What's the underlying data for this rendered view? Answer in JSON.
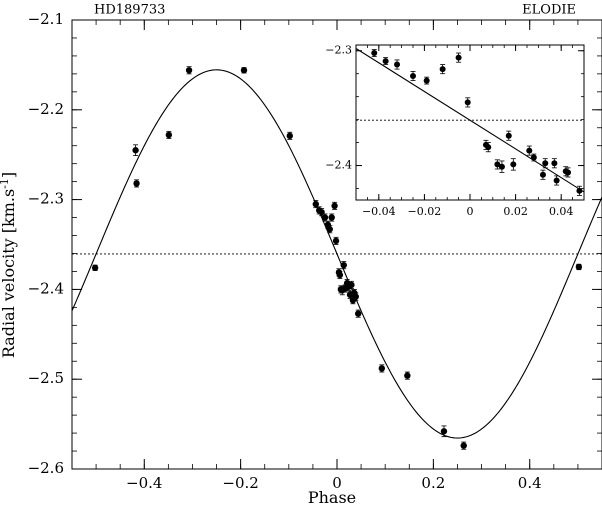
{
  "chart_data": [
    {
      "type": "scatter",
      "title_left": "HD189733",
      "title_right": "ELODIE",
      "xlabel": "Phase",
      "ylabel": "Radial velocity [km.s",
      "ylabel_sup": "-1",
      "ylabel_end": "]",
      "xlim": [
        -0.55,
        0.55
      ],
      "ylim": [
        -2.6,
        -2.1
      ],
      "xticks": [
        -0.4,
        -0.2,
        0,
        0.2,
        0.4
      ],
      "xtick_labels": [
        "−0.4",
        "−0.2",
        "0",
        "0.2",
        "0.4"
      ],
      "yticks": [
        -2.1,
        -2.2,
        -2.3,
        -2.4,
        -2.5,
        -2.6
      ],
      "ytick_labels": [
        "−2.1",
        "−2.2",
        "−2.3",
        "−2.4",
        "−2.5",
        "−2.6"
      ],
      "reference_line_y": -2.3605,
      "model_curve": {
        "type": "sine",
        "center": -2.3605,
        "semi_amplitude": 0.205,
        "period": 1
      },
      "points": [
        {
          "x": -0.502,
          "y": -2.376,
          "err": 0.003
        },
        {
          "x": -0.418,
          "y": -2.245,
          "err": 0.006
        },
        {
          "x": -0.416,
          "y": -2.282,
          "err": 0.004
        },
        {
          "x": -0.349,
          "y": -2.228,
          "err": 0.004
        },
        {
          "x": -0.307,
          "y": -2.156,
          "err": 0.004
        },
        {
          "x": -0.193,
          "y": -2.156,
          "err": 0.003
        },
        {
          "x": -0.098,
          "y": -2.229,
          "err": 0.004
        },
        {
          "x": -0.044,
          "y": -2.305,
          "err": 0.004
        },
        {
          "x": -0.037,
          "y": -2.312,
          "err": 0.004
        },
        {
          "x": -0.032,
          "y": -2.314,
          "err": 0.004
        },
        {
          "x": -0.025,
          "y": -2.32,
          "err": 0.004
        },
        {
          "x": -0.019,
          "y": -2.328,
          "err": 0.004
        },
        {
          "x": -0.015,
          "y": -2.333,
          "err": 0.004
        },
        {
          "x": -0.011,
          "y": -2.32,
          "err": 0.004
        },
        {
          "x": -0.005,
          "y": -2.307,
          "err": 0.004
        },
        {
          "x": -0.002,
          "y": -2.346,
          "err": 0.004
        },
        {
          "x": 0.004,
          "y": -2.381,
          "err": 0.004
        },
        {
          "x": 0.006,
          "y": -2.384,
          "err": 0.004
        },
        {
          "x": 0.008,
          "y": -2.4,
          "err": 0.004
        },
        {
          "x": 0.011,
          "y": -2.401,
          "err": 0.005
        },
        {
          "x": 0.014,
          "y": -2.373,
          "err": 0.004
        },
        {
          "x": 0.017,
          "y": -2.399,
          "err": 0.004
        },
        {
          "x": 0.021,
          "y": -2.393,
          "err": 0.004
        },
        {
          "x": 0.024,
          "y": -2.397,
          "err": 0.004
        },
        {
          "x": 0.027,
          "y": -2.406,
          "err": 0.004
        },
        {
          "x": 0.03,
          "y": -2.395,
          "err": 0.004
        },
        {
          "x": 0.033,
          "y": -2.412,
          "err": 0.004
        },
        {
          "x": 0.036,
          "y": -2.404,
          "err": 0.004
        },
        {
          "x": 0.039,
          "y": -2.408,
          "err": 0.004
        },
        {
          "x": 0.044,
          "y": -2.427,
          "err": 0.004
        },
        {
          "x": 0.093,
          "y": -2.488,
          "err": 0.004
        },
        {
          "x": 0.146,
          "y": -2.496,
          "err": 0.004
        },
        {
          "x": 0.222,
          "y": -2.558,
          "err": 0.006
        },
        {
          "x": 0.263,
          "y": -2.574,
          "err": 0.004
        },
        {
          "x": 0.502,
          "y": -2.375,
          "err": 0.003
        }
      ]
    },
    {
      "type": "scatter",
      "inset": true,
      "xlim": [
        -0.05,
        0.05
      ],
      "ylim": [
        -2.43,
        -2.295
      ],
      "xticks": [
        -0.04,
        -0.02,
        0,
        0.02,
        0.04
      ],
      "xtick_labels": [
        "−0.04",
        "−0.02",
        "0",
        "0.02",
        "0.04"
      ],
      "yticks": [
        -2.3,
        -2.4
      ],
      "ytick_labels": [
        "−2.3",
        "−2.4"
      ],
      "reference_line_y": -2.3605,
      "points": [
        {
          "x": -0.042,
          "y": -2.302,
          "err": 0.003
        },
        {
          "x": -0.037,
          "y": -2.309,
          "err": 0.003
        },
        {
          "x": -0.032,
          "y": -2.312,
          "err": 0.004
        },
        {
          "x": -0.025,
          "y": -2.322,
          "err": 0.004
        },
        {
          "x": -0.019,
          "y": -2.326,
          "err": 0.003
        },
        {
          "x": -0.012,
          "y": -2.316,
          "err": 0.004
        },
        {
          "x": -0.005,
          "y": -2.306,
          "err": 0.004
        },
        {
          "x": -0.001,
          "y": -2.345,
          "err": 0.004
        },
        {
          "x": 0.007,
          "y": -2.382,
          "err": 0.004
        },
        {
          "x": 0.008,
          "y": -2.384,
          "err": 0.004
        },
        {
          "x": 0.012,
          "y": -2.399,
          "err": 0.004
        },
        {
          "x": 0.014,
          "y": -2.401,
          "err": 0.005
        },
        {
          "x": 0.017,
          "y": -2.374,
          "err": 0.004
        },
        {
          "x": 0.019,
          "y": -2.399,
          "err": 0.005
        },
        {
          "x": 0.026,
          "y": -2.387,
          "err": 0.004
        },
        {
          "x": 0.028,
          "y": -2.393,
          "err": 0.003
        },
        {
          "x": 0.032,
          "y": -2.408,
          "err": 0.004
        },
        {
          "x": 0.033,
          "y": -2.398,
          "err": 0.004
        },
        {
          "x": 0.037,
          "y": -2.398,
          "err": 0.004
        },
        {
          "x": 0.038,
          "y": -2.413,
          "err": 0.004
        },
        {
          "x": 0.042,
          "y": -2.405,
          "err": 0.004
        },
        {
          "x": 0.043,
          "y": -2.406,
          "err": 0.004
        },
        {
          "x": 0.048,
          "y": -2.422,
          "err": 0.004
        }
      ],
      "fit_line": {
        "x": [
          -0.05,
          0.05
        ],
        "y": [
          -2.298,
          -2.423
        ]
      }
    }
  ]
}
